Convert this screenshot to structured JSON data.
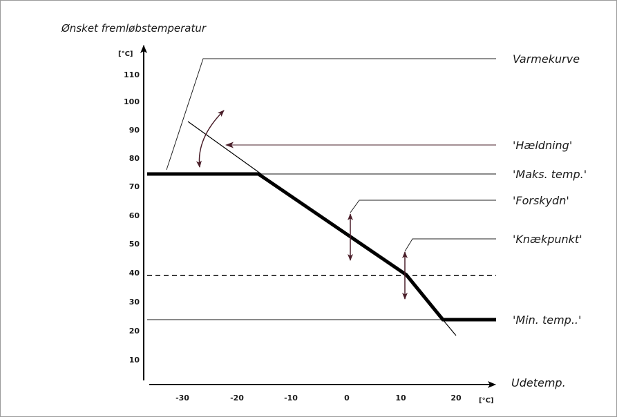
{
  "diagram": {
    "y_title": "Ønsket fremløbstemperatur",
    "y_unit": "[°C]",
    "x_label": "Udetemp.",
    "x_unit": "[°C]",
    "y_ticks": [
      "110",
      "100",
      "90",
      "80",
      "70",
      "60",
      "50",
      "40",
      "30",
      "20",
      "10"
    ],
    "x_ticks": [
      "-30",
      "-20",
      "-10",
      "0",
      "10",
      "20"
    ],
    "labels": {
      "heating_curve": "Varmekurve",
      "slope": "'Hældning'",
      "max_temp": "'Maks. temp.'",
      "offset": "'Forskydn'",
      "break_point": "'Knækpunkt'",
      "min_temp": "'Min. temp..'"
    },
    "colors": {
      "curve": "#000000",
      "reference_lines": "#8a8a8a",
      "arrows": "#4a1f2a"
    }
  },
  "chart_data": {
    "type": "line",
    "xlabel": "Udetemp.",
    "ylabel": "Ønsket fremløbstemperatur",
    "xlim": [
      -37,
      26
    ],
    "ylim": [
      0,
      120
    ],
    "series": [
      {
        "name": "Varmekurve",
        "x": [
          -37,
          -16,
          11,
          17.5,
          23
        ],
        "y": [
          75,
          75,
          41,
          25,
          25
        ]
      }
    ],
    "reference_lines": {
      "max_temp": 75,
      "min_temp": 25,
      "break_point": 40
    }
  }
}
